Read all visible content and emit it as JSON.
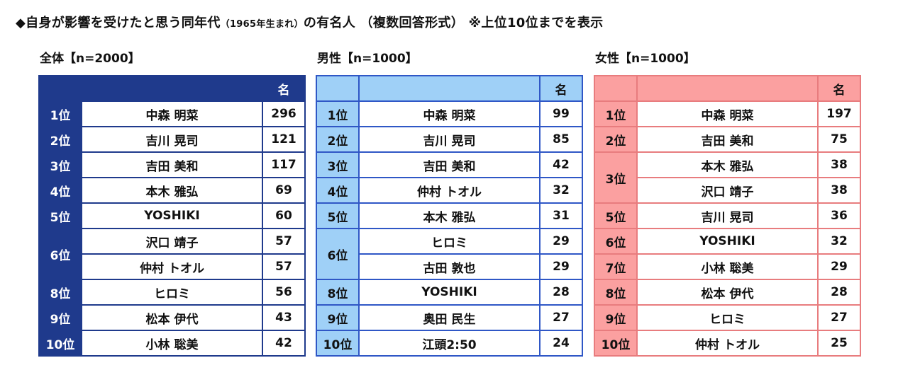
{
  "title": {
    "main": "◆自身が影響を受けたと思う同年代",
    "sub": "（1965年生まれ）",
    "rest": "の有名人 （複数回答形式） ※上位10位までを表示"
  },
  "groups": {
    "total": {
      "label": "全体【n=2000】"
    },
    "male": {
      "label": "男性【n=1000】"
    },
    "female": {
      "label": "女性【n=1000】"
    }
  },
  "header": {
    "count_label": "名"
  },
  "total_rows": [
    {
      "rank": "1位",
      "name": "中森 明菜",
      "count": "296"
    },
    {
      "rank": "2位",
      "name": "吉川 晃司",
      "count": "121"
    },
    {
      "rank": "3位",
      "name": "吉田 美和",
      "count": "117"
    },
    {
      "rank": "4位",
      "name": "本木 雅弘",
      "count": "69"
    },
    {
      "rank": "5位",
      "name": "YOSHIKI",
      "count": "60"
    },
    {
      "rank": "6位",
      "name": "沢口 靖子",
      "count": "57"
    },
    {
      "rank": "6位",
      "name": "仲村 トオル",
      "count": "57"
    },
    {
      "rank": "8位",
      "name": "ヒロミ",
      "count": "56"
    },
    {
      "rank": "9位",
      "name": "松本 伊代",
      "count": "43"
    },
    {
      "rank": "10位",
      "name": "小林 聡美",
      "count": "42"
    }
  ],
  "male_rows": [
    {
      "rank": "1位",
      "name": "中森 明菜",
      "count": "99"
    },
    {
      "rank": "2位",
      "name": "吉川 晃司",
      "count": "85"
    },
    {
      "rank": "3位",
      "name": "吉田 美和",
      "count": "42"
    },
    {
      "rank": "4位",
      "name": "仲村 トオル",
      "count": "32"
    },
    {
      "rank": "5位",
      "name": "本木 雅弘",
      "count": "31"
    },
    {
      "rank": "6位",
      "name": "ヒロミ",
      "count": "29"
    },
    {
      "rank": "6位",
      "name": "古田 敦也",
      "count": "29"
    },
    {
      "rank": "8位",
      "name": "YOSHIKI",
      "count": "28"
    },
    {
      "rank": "9位",
      "name": "奥田 民生",
      "count": "27"
    },
    {
      "rank": "10位",
      "name": "江頭2:50",
      "count": "24"
    }
  ],
  "female_rows": [
    {
      "rank": "1位",
      "name": "中森 明菜",
      "count": "197"
    },
    {
      "rank": "2位",
      "name": "吉田 美和",
      "count": "75"
    },
    {
      "rank": "3位",
      "name": "本木 雅弘",
      "count": "38"
    },
    {
      "rank": "3位",
      "name": "沢口 靖子",
      "count": "38"
    },
    {
      "rank": "5位",
      "name": "吉川 晃司",
      "count": "36"
    },
    {
      "rank": "6位",
      "name": "YOSHIKI",
      "count": "32"
    },
    {
      "rank": "7位",
      "name": "小林 聡美",
      "count": "29"
    },
    {
      "rank": "8位",
      "name": "松本 伊代",
      "count": "28"
    },
    {
      "rank": "9位",
      "name": "ヒロミ",
      "count": "27"
    },
    {
      "rank": "10位",
      "name": "仲村 トオル",
      "count": "25"
    }
  ],
  "colors": {
    "total_header": "#1f3a8c",
    "male_header": "#9fd0f7",
    "male_border": "#2f57c6",
    "female_header": "#fba0a0",
    "female_border": "#e87c7e"
  }
}
